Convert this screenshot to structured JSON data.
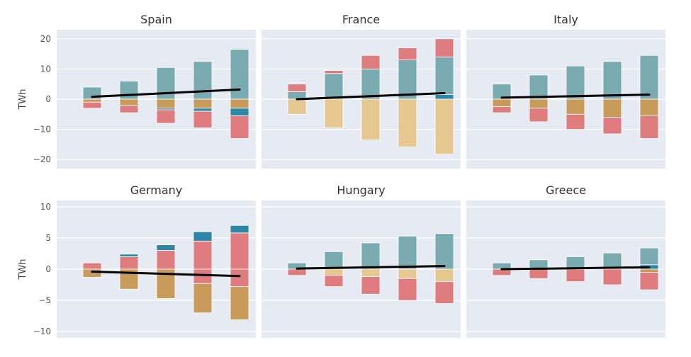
{
  "colors": {
    "background": "#e6ebf3",
    "grid": "#ffffff",
    "teal": "#7aabb0",
    "blue": "#2e86a6",
    "pink": "#de7c80",
    "tan": "#e5c78f",
    "brown": "#c99b5b",
    "trend": "#000000"
  },
  "chart_data": [
    {
      "type": "bar",
      "title": "Spain",
      "ylabel": "TWh",
      "ylim": [
        -23,
        23
      ],
      "yticks": [
        20,
        10,
        0,
        -10,
        -20
      ],
      "tick_labels": [
        "20",
        "10",
        "0",
        "−10",
        "−20"
      ],
      "stacks": [
        {
          "positive": [
            {
              "color": "teal",
              "value": 4.0
            }
          ],
          "negative": [
            {
              "color": "brown",
              "value": 1.0
            },
            {
              "color": "pink",
              "value": 2.0
            }
          ]
        },
        {
          "positive": [
            {
              "color": "teal",
              "value": 6.0
            }
          ],
          "negative": [
            {
              "color": "brown",
              "value": 2.0
            },
            {
              "color": "pink",
              "value": 2.5
            }
          ]
        },
        {
          "positive": [
            {
              "color": "teal",
              "value": 10.5
            }
          ],
          "negative": [
            {
              "color": "brown",
              "value": 3.0
            },
            {
              "color": "blue",
              "value": 0.5
            },
            {
              "color": "pink",
              "value": 4.5
            }
          ]
        },
        {
          "positive": [
            {
              "color": "teal",
              "value": 12.5
            }
          ],
          "negative": [
            {
              "color": "brown",
              "value": 3.0
            },
            {
              "color": "blue",
              "value": 1.0
            },
            {
              "color": "pink",
              "value": 5.5
            }
          ]
        },
        {
          "positive": [
            {
              "color": "teal",
              "value": 16.5
            }
          ],
          "negative": [
            {
              "color": "brown",
              "value": 3.0
            },
            {
              "color": "blue",
              "value": 2.5
            },
            {
              "color": "pink",
              "value": 7.5
            }
          ]
        }
      ],
      "trend": [
        0.8,
        3.2
      ]
    },
    {
      "type": "bar",
      "title": "France",
      "ylabel": "",
      "ylim": [
        -23,
        23
      ],
      "yticks": [
        20,
        10,
        0,
        -10,
        -20
      ],
      "tick_labels": [],
      "stacks": [
        {
          "positive": [
            {
              "color": "teal",
              "value": 2.5
            },
            {
              "color": "pink",
              "value": 2.5
            }
          ],
          "negative": [
            {
              "color": "tan",
              "value": 5.0
            }
          ]
        },
        {
          "positive": [
            {
              "color": "teal",
              "value": 8.5
            },
            {
              "color": "pink",
              "value": 1.0
            }
          ],
          "negative": [
            {
              "color": "tan",
              "value": 9.5
            }
          ]
        },
        {
          "positive": [
            {
              "color": "teal",
              "value": 10.0
            },
            {
              "color": "pink",
              "value": 4.5
            }
          ],
          "negative": [
            {
              "color": "tan",
              "value": 13.5
            }
          ]
        },
        {
          "positive": [
            {
              "color": "teal",
              "value": 13.0
            },
            {
              "color": "pink",
              "value": 4.0
            }
          ],
          "negative": [
            {
              "color": "tan",
              "value": 15.8
            }
          ]
        },
        {
          "positive": [
            {
              "color": "blue",
              "value": 1.5
            },
            {
              "color": "teal",
              "value": 12.5
            },
            {
              "color": "pink",
              "value": 6.0
            }
          ],
          "negative": [
            {
              "color": "tan",
              "value": 18.2
            }
          ]
        }
      ],
      "trend": [
        0.0,
        2.0
      ]
    },
    {
      "type": "bar",
      "title": "Italy",
      "ylabel": "",
      "ylim": [
        -23,
        23
      ],
      "yticks": [
        20,
        10,
        0,
        -10,
        -20
      ],
      "tick_labels": [],
      "stacks": [
        {
          "positive": [
            {
              "color": "teal",
              "value": 5.0
            }
          ],
          "negative": [
            {
              "color": "brown",
              "value": 2.5
            },
            {
              "color": "pink",
              "value": 2.0
            }
          ]
        },
        {
          "positive": [
            {
              "color": "teal",
              "value": 8.0
            }
          ],
          "negative": [
            {
              "color": "brown",
              "value": 3.0
            },
            {
              "color": "pink",
              "value": 4.5
            }
          ]
        },
        {
          "positive": [
            {
              "color": "teal",
              "value": 11.0
            }
          ],
          "negative": [
            {
              "color": "brown",
              "value": 5.0
            },
            {
              "color": "pink",
              "value": 5.0
            }
          ]
        },
        {
          "positive": [
            {
              "color": "teal",
              "value": 12.5
            }
          ],
          "negative": [
            {
              "color": "brown",
              "value": 6.0
            },
            {
              "color": "pink",
              "value": 5.5
            }
          ]
        },
        {
          "positive": [
            {
              "color": "teal",
              "value": 14.5
            }
          ],
          "negative": [
            {
              "color": "brown",
              "value": 5.5
            },
            {
              "color": "pink",
              "value": 7.5
            }
          ]
        }
      ],
      "trend": [
        0.5,
        1.5
      ]
    },
    {
      "type": "bar",
      "title": "Germany",
      "ylabel": "TWh",
      "ylim": [
        -11,
        11
      ],
      "yticks": [
        10,
        5,
        0,
        -5,
        -10
      ],
      "tick_labels": [
        "10",
        "5",
        "0",
        "−5",
        "−10"
      ],
      "stacks": [
        {
          "positive": [
            {
              "color": "pink",
              "value": 1.0
            }
          ],
          "negative": [
            {
              "color": "brown",
              "value": 1.3
            }
          ]
        },
        {
          "positive": [
            {
              "color": "pink",
              "value": 2.0
            },
            {
              "color": "blue",
              "value": 0.4
            }
          ],
          "negative": [
            {
              "color": "brown",
              "value": 3.2
            }
          ]
        },
        {
          "positive": [
            {
              "color": "pink",
              "value": 3.0
            },
            {
              "color": "blue",
              "value": 0.9
            }
          ],
          "negative": [
            {
              "color": "brown",
              "value": 4.7
            }
          ]
        },
        {
          "positive": [
            {
              "color": "pink",
              "value": 4.5
            },
            {
              "color": "blue",
              "value": 1.5
            }
          ],
          "negative": [
            {
              "color": "pink",
              "value": 2.3
            },
            {
              "color": "brown",
              "value": 4.7
            }
          ]
        },
        {
          "positive": [
            {
              "color": "pink",
              "value": 5.8
            },
            {
              "color": "blue",
              "value": 1.2
            }
          ],
          "negative": [
            {
              "color": "pink",
              "value": 2.8
            },
            {
              "color": "brown",
              "value": 5.3
            }
          ]
        }
      ],
      "trend": [
        -0.4,
        -1.1
      ]
    },
    {
      "type": "bar",
      "title": "Hungary",
      "ylabel": "",
      "ylim": [
        -11,
        11
      ],
      "yticks": [
        10,
        5,
        0,
        -5,
        -10
      ],
      "tick_labels": [],
      "stacks": [
        {
          "positive": [
            {
              "color": "teal",
              "value": 1.0
            }
          ],
          "negative": [
            {
              "color": "pink",
              "value": 1.0
            }
          ]
        },
        {
          "positive": [
            {
              "color": "teal",
              "value": 2.8
            }
          ],
          "negative": [
            {
              "color": "tan",
              "value": 1.0
            },
            {
              "color": "pink",
              "value": 1.8
            }
          ]
        },
        {
          "positive": [
            {
              "color": "teal",
              "value": 4.2
            }
          ],
          "negative": [
            {
              "color": "tan",
              "value": 1.2
            },
            {
              "color": "pink",
              "value": 2.8
            }
          ]
        },
        {
          "positive": [
            {
              "color": "teal",
              "value": 5.3
            }
          ],
          "negative": [
            {
              "color": "tan",
              "value": 1.5
            },
            {
              "color": "pink",
              "value": 3.5
            }
          ]
        },
        {
          "positive": [
            {
              "color": "teal",
              "value": 5.7
            }
          ],
          "negative": [
            {
              "color": "tan",
              "value": 2.0
            },
            {
              "color": "pink",
              "value": 3.5
            }
          ]
        }
      ],
      "trend": [
        0.1,
        0.5
      ]
    },
    {
      "type": "bar",
      "title": "Greece",
      "ylabel": "",
      "ylim": [
        -11,
        11
      ],
      "yticks": [
        10,
        5,
        0,
        -5,
        -10
      ],
      "tick_labels": [],
      "stacks": [
        {
          "positive": [
            {
              "color": "teal",
              "value": 1.0
            }
          ],
          "negative": [
            {
              "color": "pink",
              "value": 1.0
            }
          ]
        },
        {
          "positive": [
            {
              "color": "teal",
              "value": 1.5
            }
          ],
          "negative": [
            {
              "color": "pink",
              "value": 1.5
            }
          ]
        },
        {
          "positive": [
            {
              "color": "teal",
              "value": 2.0
            }
          ],
          "negative": [
            {
              "color": "pink",
              "value": 2.0
            }
          ]
        },
        {
          "positive": [
            {
              "color": "teal",
              "value": 2.6
            }
          ],
          "negative": [
            {
              "color": "pink",
              "value": 2.5
            }
          ]
        },
        {
          "positive": [
            {
              "color": "blue",
              "value": 0.7
            },
            {
              "color": "teal",
              "value": 2.7
            }
          ],
          "negative": [
            {
              "color": "brown",
              "value": 0.5
            },
            {
              "color": "pink",
              "value": 2.8
            }
          ]
        }
      ],
      "trend": [
        0.0,
        0.3
      ]
    }
  ]
}
